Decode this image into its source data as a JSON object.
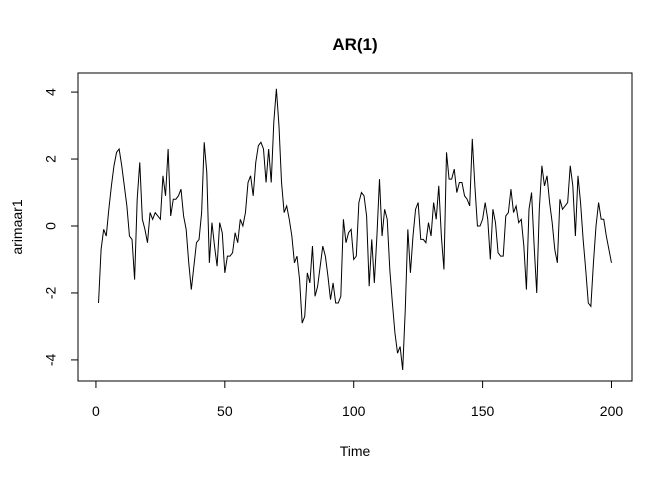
{
  "chart_data": {
    "type": "line",
    "title": "AR(1)",
    "x_label": "Time",
    "y_label": "arimaar1",
    "x": [
      1,
      2,
      3,
      4,
      5,
      6,
      7,
      8,
      9,
      10,
      11,
      12,
      13,
      14,
      15,
      16,
      17,
      18,
      19,
      20,
      21,
      22,
      23,
      24,
      25,
      26,
      27,
      28,
      29,
      30,
      31,
      32,
      33,
      34,
      35,
      36,
      37,
      38,
      39,
      40,
      41,
      42,
      43,
      44,
      45,
      46,
      47,
      48,
      49,
      50,
      51,
      52,
      53,
      54,
      55,
      56,
      57,
      58,
      59,
      60,
      61,
      62,
      63,
      64,
      65,
      66,
      67,
      68,
      69,
      70,
      71,
      72,
      73,
      74,
      75,
      76,
      77,
      78,
      79,
      80,
      81,
      82,
      83,
      84,
      85,
      86,
      87,
      88,
      89,
      90,
      91,
      92,
      93,
      94,
      95,
      96,
      97,
      98,
      99,
      100,
      101,
      102,
      103,
      104,
      105,
      106,
      107,
      108,
      109,
      110,
      111,
      112,
      113,
      114,
      115,
      116,
      117,
      118,
      119,
      120,
      121,
      122,
      123,
      124,
      125,
      126,
      127,
      128,
      129,
      130,
      131,
      132,
      133,
      134,
      135,
      136,
      137,
      138,
      139,
      140,
      141,
      142,
      143,
      144,
      145,
      146,
      147,
      148,
      149,
      150,
      151,
      152,
      153,
      154,
      155,
      156,
      157,
      158,
      159,
      160,
      161,
      162,
      163,
      164,
      165,
      166,
      167,
      168,
      169,
      170,
      171,
      172,
      173,
      174,
      175,
      176,
      177,
      178,
      179,
      180,
      181,
      182,
      183,
      184,
      185,
      186,
      187,
      188,
      189,
      190,
      191,
      192,
      193,
      194,
      195,
      196,
      197,
      198,
      199,
      200
    ],
    "series": [
      {
        "name": "arimaar1",
        "color": "#000000",
        "values": [
          -2.3,
          -0.7,
          -0.1,
          -0.3,
          0.5,
          1.2,
          1.8,
          2.2,
          2.3,
          1.8,
          1.2,
          0.6,
          -0.3,
          -0.4,
          -1.6,
          0.8,
          1.9,
          0.2,
          -0.1,
          -0.5,
          0.4,
          0.2,
          0.4,
          0.3,
          0.2,
          1.5,
          0.9,
          2.3,
          0.3,
          0.8,
          0.8,
          0.9,
          1.1,
          0.3,
          -0.1,
          -1.1,
          -1.9,
          -1.2,
          -0.5,
          -0.4,
          0.4,
          2.5,
          1.6,
          -1.1,
          0.1,
          -0.6,
          -1.2,
          0.1,
          -0.2,
          -1.4,
          -0.9,
          -0.9,
          -0.8,
          -0.2,
          -0.5,
          0.2,
          0.0,
          0.4,
          1.3,
          1.5,
          0.9,
          1.9,
          2.4,
          2.5,
          2.3,
          1.3,
          2.3,
          1.3,
          3.1,
          4.1,
          3.0,
          1.3,
          0.4,
          0.6,
          0.2,
          -0.3,
          -1.1,
          -0.9,
          -1.6,
          -2.9,
          -2.7,
          -1.4,
          -1.7,
          -0.6,
          -2.1,
          -1.8,
          -1.2,
          -0.6,
          -0.9,
          -1.5,
          -2.2,
          -1.7,
          -2.3,
          -2.3,
          -2.1,
          0.2,
          -0.5,
          -0.2,
          -0.1,
          -1.0,
          -0.9,
          0.7,
          1.0,
          0.9,
          0.3,
          -1.8,
          -0.4,
          -1.7,
          -0.3,
          1.4,
          -0.3,
          0.5,
          0.2,
          -1.3,
          -2.3,
          -3.2,
          -3.8,
          -3.6,
          -4.3,
          -2.5,
          -0.1,
          -1.4,
          -0.3,
          0.5,
          0.7,
          -0.4,
          -0.4,
          -0.5,
          0.1,
          -0.3,
          0.7,
          0.2,
          1.2,
          -0.3,
          -1.3,
          2.2,
          1.4,
          1.4,
          1.7,
          1.0,
          1.3,
          1.3,
          0.9,
          0.8,
          0.6,
          2.6,
          1.2,
          0.0,
          0.0,
          0.2,
          0.7,
          0.2,
          -1.0,
          0.5,
          0.1,
          -0.8,
          -0.9,
          -0.9,
          0.3,
          0.4,
          1.1,
          0.4,
          0.6,
          0.1,
          0.2,
          -0.6,
          -1.9,
          0.5,
          1.0,
          -0.6,
          -2.0,
          0.5,
          1.8,
          1.2,
          1.5,
          0.7,
          0.1,
          -0.7,
          -1.1,
          0.8,
          0.5,
          0.6,
          0.7,
          1.8,
          1.2,
          -0.3,
          1.5,
          0.7,
          -0.4,
          -1.3,
          -2.3,
          -2.4,
          -1.1,
          0.0,
          0.7,
          0.2,
          0.2,
          -0.3,
          -0.7,
          -1.1
        ]
      }
    ],
    "xlim": [
      -6.96,
      207.96
    ],
    "xticks": [
      0,
      50,
      100,
      150,
      200
    ],
    "ylim": [
      -4.63,
      4.57
    ],
    "yticks": [
      -4,
      -2,
      0,
      2,
      4
    ]
  }
}
